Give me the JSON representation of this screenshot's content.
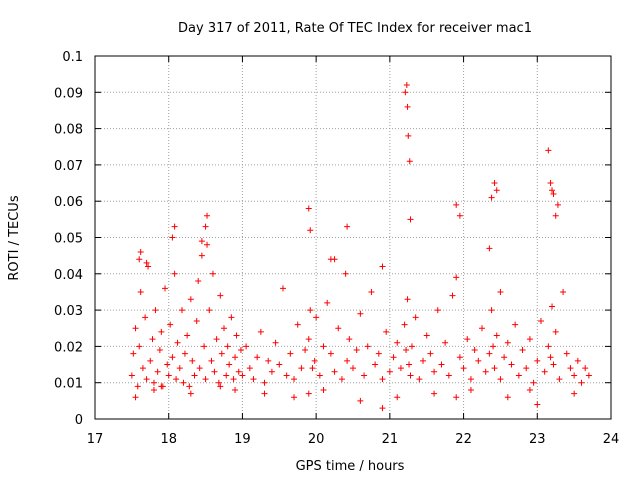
{
  "chart_data": {
    "type": "scatter",
    "title": "Day 317 of 2011, Rate Of TEC Index for receiver mac1",
    "xlabel": "GPS time / hours",
    "ylabel": "ROTI / TECUs",
    "xlim": [
      17,
      24
    ],
    "ylim": [
      0,
      0.1
    ],
    "x_ticks": [
      "17",
      "18",
      "19",
      "20",
      "21",
      "22",
      "23",
      "24"
    ],
    "y_ticks": [
      "0",
      "0.01",
      "0.02",
      "0.03",
      "0.04",
      "0.05",
      "0.06",
      "0.07",
      "0.08",
      "0.09",
      "0.1"
    ],
    "grid": true,
    "marker": "+",
    "color": "#ff0000",
    "series": [
      {
        "name": "ROTI mac1",
        "x": [
          17.5,
          17.52,
          17.55,
          17.58,
          17.6,
          17.62,
          17.65,
          17.68,
          17.7,
          17.72,
          17.75,
          17.78,
          17.8,
          17.82,
          17.85,
          17.88,
          17.9,
          17.92,
          17.95,
          17.98,
          18.0,
          18.02,
          18.05,
          18.08,
          18.1,
          18.12,
          18.15,
          18.18,
          18.2,
          18.22,
          18.25,
          18.28,
          18.3,
          18.32,
          18.35,
          18.38,
          18.4,
          18.42,
          18.45,
          18.48,
          18.5,
          18.52,
          18.55,
          18.58,
          18.6,
          18.62,
          18.65,
          18.68,
          18.7,
          18.72,
          18.75,
          18.78,
          18.8,
          18.82,
          18.85,
          18.88,
          18.9,
          18.92,
          18.95,
          18.98,
          19.0,
          19.05,
          19.1,
          19.15,
          19.2,
          19.25,
          19.3,
          19.35,
          19.4,
          19.45,
          19.5,
          19.55,
          19.6,
          19.65,
          19.7,
          19.75,
          19.8,
          19.85,
          19.9,
          19.92,
          19.95,
          19.98,
          20.0,
          20.05,
          20.1,
          20.15,
          20.2,
          20.25,
          20.3,
          20.35,
          20.4,
          20.42,
          20.45,
          20.5,
          20.55,
          20.6,
          20.65,
          20.7,
          20.75,
          20.8,
          20.85,
          20.9,
          20.95,
          21.0,
          21.05,
          21.1,
          21.15,
          21.2,
          21.22,
          21.24,
          21.26,
          21.28,
          21.3,
          21.35,
          21.4,
          21.45,
          21.5,
          21.55,
          21.6,
          21.65,
          21.7,
          21.75,
          21.8,
          21.85,
          21.9,
          21.95,
          22.0,
          22.05,
          22.1,
          22.15,
          22.2,
          22.25,
          22.3,
          22.35,
          22.38,
          22.4,
          22.42,
          22.45,
          22.5,
          22.55,
          22.6,
          22.65,
          22.7,
          22.75,
          22.8,
          22.85,
          22.9,
          22.95,
          23.0,
          23.05,
          23.1,
          23.15,
          23.18,
          23.2,
          23.22,
          23.25,
          23.3,
          23.35,
          23.4,
          23.45,
          23.5,
          23.55,
          23.6,
          23.65,
          23.7,
          17.6,
          17.7,
          17.62,
          18.05,
          18.08,
          18.5,
          18.52,
          18.45,
          19.9,
          19.92,
          20.2,
          20.25,
          20.42,
          20.9,
          21.21,
          21.23,
          21.24,
          21.25,
          21.27,
          21.28,
          21.9,
          21.95,
          22.35,
          22.38,
          22.42,
          22.45,
          22.5,
          23.15,
          23.18,
          23.2,
          23.22,
          23.25,
          23.28,
          17.55,
          17.8,
          18.3,
          18.7,
          19.3,
          19.7,
          20.1,
          20.6,
          21.1,
          21.6,
          22.1,
          22.6,
          23.0,
          23.5,
          17.9,
          18.9,
          19.9,
          20.9,
          21.9,
          22.9
        ],
        "y": [
          0.012,
          0.018,
          0.025,
          0.009,
          0.02,
          0.035,
          0.014,
          0.028,
          0.011,
          0.042,
          0.016,
          0.022,
          0.01,
          0.03,
          0.013,
          0.019,
          0.024,
          0.009,
          0.036,
          0.015,
          0.012,
          0.026,
          0.017,
          0.04,
          0.011,
          0.021,
          0.014,
          0.03,
          0.01,
          0.018,
          0.023,
          0.009,
          0.033,
          0.016,
          0.012,
          0.027,
          0.038,
          0.014,
          0.045,
          0.02,
          0.011,
          0.048,
          0.03,
          0.016,
          0.04,
          0.013,
          0.022,
          0.01,
          0.034,
          0.018,
          0.025,
          0.012,
          0.02,
          0.015,
          0.028,
          0.011,
          0.017,
          0.023,
          0.013,
          0.019,
          0.012,
          0.02,
          0.014,
          0.011,
          0.017,
          0.024,
          0.01,
          0.016,
          0.013,
          0.021,
          0.015,
          0.036,
          0.012,
          0.018,
          0.011,
          0.026,
          0.014,
          0.019,
          0.022,
          0.03,
          0.014,
          0.016,
          0.028,
          0.012,
          0.02,
          0.032,
          0.018,
          0.013,
          0.025,
          0.011,
          0.04,
          0.016,
          0.022,
          0.014,
          0.019,
          0.029,
          0.012,
          0.02,
          0.035,
          0.015,
          0.018,
          0.011,
          0.024,
          0.013,
          0.017,
          0.021,
          0.014,
          0.026,
          0.019,
          0.033,
          0.015,
          0.012,
          0.02,
          0.028,
          0.011,
          0.016,
          0.023,
          0.018,
          0.013,
          0.03,
          0.015,
          0.021,
          0.012,
          0.034,
          0.039,
          0.017,
          0.014,
          0.022,
          0.011,
          0.019,
          0.016,
          0.025,
          0.013,
          0.018,
          0.03,
          0.02,
          0.014,
          0.023,
          0.011,
          0.017,
          0.021,
          0.015,
          0.026,
          0.012,
          0.019,
          0.014,
          0.022,
          0.01,
          0.016,
          0.027,
          0.013,
          0.02,
          0.017,
          0.031,
          0.015,
          0.024,
          0.011,
          0.035,
          0.018,
          0.014,
          0.012,
          0.016,
          0.01,
          0.014,
          0.012,
          0.044,
          0.043,
          0.046,
          0.05,
          0.053,
          0.053,
          0.056,
          0.049,
          0.058,
          0.052,
          0.044,
          0.044,
          0.053,
          0.042,
          0.09,
          0.092,
          0.086,
          0.078,
          0.071,
          0.055,
          0.059,
          0.056,
          0.047,
          0.061,
          0.065,
          0.063,
          0.035,
          0.074,
          0.065,
          0.063,
          0.062,
          0.056,
          0.059,
          0.006,
          0.008,
          0.007,
          0.009,
          0.007,
          0.006,
          0.008,
          0.005,
          0.006,
          0.007,
          0.008,
          0.006,
          0.004,
          0.007,
          0.009,
          0.008,
          0.007,
          0.003,
          0.006,
          0.008
        ]
      }
    ]
  }
}
